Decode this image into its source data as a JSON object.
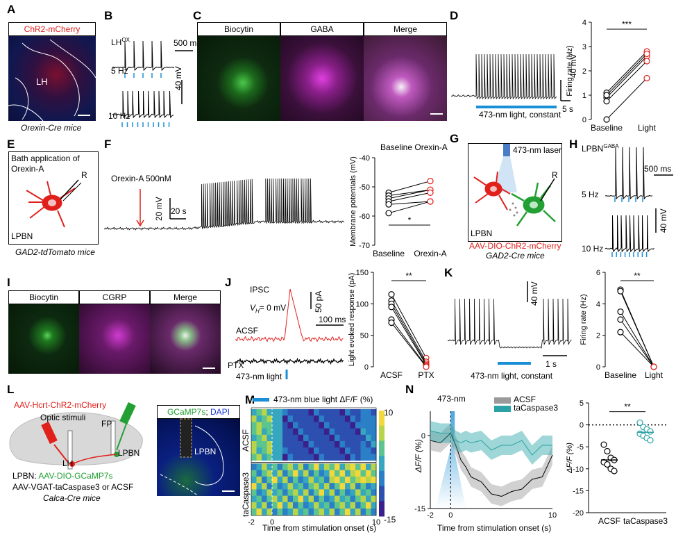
{
  "panels": {
    "A": "A",
    "B": "B",
    "C": "C",
    "D": "D",
    "E": "E",
    "F": "F",
    "G": "G",
    "H": "H",
    "I": "I",
    "J": "J",
    "K": "K",
    "L": "L",
    "M": "M",
    "N": "N"
  },
  "A": {
    "header": "ChR2-mCherry",
    "region": "LH",
    "caption": "Orexin-Cre mice"
  },
  "B": {
    "title": "LH",
    "title_sup": "OX",
    "scale_t": "500 ms",
    "scale_v": "40 mV",
    "f1": "5 Hz",
    "f2": "10 Hz"
  },
  "C": {
    "h1": "Biocytin",
    "h2": "GABA",
    "h3": "Merge"
  },
  "D": {
    "scale_v": "40 mV",
    "scale_t": "5 s",
    "light": "473-nm light, constant",
    "sig": "***"
  },
  "E": {
    "box_text_1": "Bath application of",
    "box_text_2": "Orexin-A",
    "electrode": "R",
    "region": "LPBN",
    "caption": "GAD2-tdTomato mice"
  },
  "F": {
    "drug": "Orexin-A 500nM",
    "scale_v": "20 mV",
    "scale_t": "20 s",
    "plot_title": "Baseline Orexin-A",
    "sig": "*"
  },
  "G": {
    "laser": "473-nm laser",
    "electrode": "R",
    "region": "LPBN",
    "virus": "AAV-DIO-ChR2-mCherry",
    "caption": "GAD2-Cre mice"
  },
  "H": {
    "title": "LPBN",
    "title_sup": "GABA",
    "scale_t": "500 ms",
    "scale_v": "40 mV",
    "f1": "5 Hz",
    "f2": "10 Hz"
  },
  "I": {
    "h1": "Biocytin",
    "h2": "CGRP",
    "h3": "Merge"
  },
  "J": {
    "ipsc": "IPSC",
    "vh_pre": "V",
    "vh_sub": "H",
    "vh_post": "= 0 mV",
    "scale_i": "50 pA",
    "scale_t": "100 ms",
    "acsf": "ACSF",
    "ptx": "PTX",
    "light": "473-nm light",
    "sig": "**"
  },
  "K": {
    "scale_v": "40 mV",
    "scale_t": "1 s",
    "light": "473-nm light, constant",
    "sig": "**"
  },
  "L": {
    "virus1": "AAV-Hcrt-ChR2-mCherry",
    "stim": "Optic stimuli",
    "fp": "FP",
    "lh": "LH",
    "lpbn": "LPBN",
    "line1_a": "LPBN: ",
    "line1_b": "AAV-DIO-GCaMP7s",
    "line2": "AAV-VGAT-taCaspase3 or ACSF",
    "caption": "Calca-Cre mice",
    "img_hdr_a": "GCaMP7s",
    "img_hdr_sep": "; ",
    "img_hdr_b": "DAPI",
    "img_region": "LPBN"
  },
  "M": {
    "legend": "473-nm blue light ΔF/F (%)",
    "row1": "ACSF",
    "row2": "taCaspase3",
    "xlabel": "Time from stimulation onset (s)",
    "cbar_max": "10",
    "cbar_min": "-15"
  },
  "N": {
    "marker": "473-nm",
    "leg1": "ACSF",
    "leg2": "taCaspase3",
    "ylabel": "ΔF/F (%)",
    "xlabel": "Time from stimulation onset (s)",
    "sig": "**"
  },
  "colors": {
    "red": "#e0201b",
    "blue": "#1a8fd6",
    "teal": "#2ba3a6",
    "green": "#22a033",
    "magenta": "#d42fd0",
    "gray": "#9a9a9a"
  },
  "chart_data": [
    {
      "id": "D-right",
      "type": "scatter",
      "categories": [
        "Baseline",
        "Light"
      ],
      "ylabel": "Firing rate (Hz)",
      "ylim": [
        0,
        4
      ],
      "yticks": [
        0,
        1,
        2,
        3,
        4
      ],
      "pairs": [
        [
          1.1,
          2.8
        ],
        [
          0.9,
          2.6
        ],
        [
          0.75,
          2.4
        ],
        [
          0.0,
          1.7
        ],
        [
          1.0,
          2.7
        ]
      ]
    },
    {
      "id": "F-right",
      "type": "scatter",
      "categories": [
        "Baseline",
        "Orexin-A"
      ],
      "ylabel": "Membrane potentials (mV)",
      "ylim": [
        -70,
        -40
      ],
      "yticks": [
        -40,
        -50,
        -60,
        -70
      ],
      "pairs": [
        [
          -52,
          -48
        ],
        [
          -53,
          -51
        ],
        [
          -54,
          -51
        ],
        [
          -55,
          -52
        ],
        [
          -56,
          -55
        ],
        [
          -59,
          -55
        ]
      ]
    },
    {
      "id": "J-right",
      "type": "scatter",
      "categories": [
        "ACSF",
        "PTX"
      ],
      "ylabel": "Light evoked response (pA)",
      "ylim": [
        0,
        150
      ],
      "yticks": [
        0,
        50,
        100,
        150
      ],
      "pairs": [
        [
          115,
          14
        ],
        [
          105,
          8
        ],
        [
          100,
          5
        ],
        [
          95,
          3
        ],
        [
          75,
          1
        ],
        [
          70,
          0
        ]
      ]
    },
    {
      "id": "K-right",
      "type": "scatter",
      "categories": [
        "Baseline",
        "Light"
      ],
      "ylabel": "Firing rate (Hz)",
      "ylim": [
        0,
        6
      ],
      "yticks": [
        0,
        2,
        4,
        6
      ],
      "pairs": [
        [
          4.9,
          0
        ],
        [
          4.8,
          0
        ],
        [
          3.5,
          0
        ],
        [
          3.0,
          0
        ],
        [
          2.2,
          0
        ]
      ]
    },
    {
      "id": "M",
      "type": "heatmap",
      "x": [
        -2,
        0,
        10
      ],
      "xticks": [
        -2,
        0,
        10
      ],
      "rows_acsf": 8,
      "rows_tacaspase3": 8,
      "zlim": [
        -15,
        10
      ]
    },
    {
      "id": "N-line",
      "type": "line",
      "xlim": [
        -2,
        10
      ],
      "ylim": [
        -15,
        5
      ],
      "yticks": [
        0,
        -15
      ],
      "xticks": [
        -2,
        0,
        10
      ],
      "x": [
        -2,
        -1,
        0,
        0.5,
        1,
        1.5,
        2,
        3,
        4,
        5,
        6,
        7,
        8,
        9,
        10
      ],
      "series": [
        {
          "name": "ACSF",
          "values": [
            -1,
            -1.5,
            0.5,
            -2,
            -5,
            -6.5,
            -8.5,
            -9.5,
            -12,
            -12.5,
            -11.5,
            -11,
            -9,
            -8.5,
            -4
          ]
        },
        {
          "name": "taCaspase3",
          "values": [
            1,
            0.5,
            0.5,
            -1,
            -1.5,
            -1,
            -1.5,
            -1,
            -3,
            -2,
            -2,
            -1,
            -4,
            -2,
            -2
          ]
        }
      ]
    },
    {
      "id": "N-right",
      "type": "scatter",
      "categories": [
        "ACSF",
        "taCaspase3"
      ],
      "ylabel": "ΔF/F (%)",
      "ylim": [
        -20,
        5
      ],
      "yticks": [
        5,
        0,
        -5,
        -10,
        -15,
        -20
      ],
      "values_acsf": [
        -4.5,
        -6,
        -7.5,
        -8,
        -8.5,
        -9,
        -10,
        -10.5
      ],
      "values_ta": [
        0.5,
        -0.5,
        -1,
        -1.5,
        -2,
        -2.5,
        -3,
        -3.5
      ]
    }
  ]
}
